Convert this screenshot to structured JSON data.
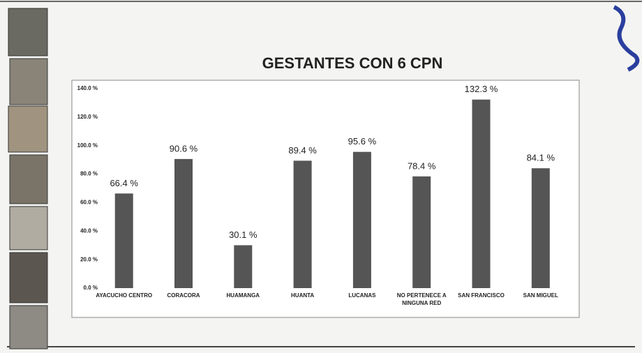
{
  "chart_data": {
    "type": "bar",
    "title": "GESTANTES CON 6 CPN",
    "categories": [
      "AYACUCHO CENTRO",
      "CORACORA",
      "HUAMANGA",
      "HUANTA",
      "LUCANAS",
      "NO PERTENECE A NINGUNA RED",
      "SAN FRANCISCO",
      "SAN MIGUEL"
    ],
    "values": [
      66.4,
      90.6,
      30.1,
      89.4,
      95.6,
      78.4,
      132.3,
      84.1
    ],
    "value_labels": [
      "66.4 %",
      "90.6 %",
      "30.1 %",
      "89.4 %",
      "95.6 %",
      "78.4 %",
      "132.3 %",
      "84.1 %"
    ],
    "color": "#555555",
    "ylim": [
      0,
      140
    ],
    "yticks": [
      {
        "value": 0,
        "label": "0.0 %"
      },
      {
        "value": 20,
        "label": "20.0 %"
      },
      {
        "value": 40,
        "label": "40.0 %"
      },
      {
        "value": 60,
        "label": "60.0 %"
      },
      {
        "value": 80,
        "label": "80.0 %"
      },
      {
        "value": 100,
        "label": "100.0 %"
      },
      {
        "value": 120,
        "label": "120.0 %"
      },
      {
        "value": 140,
        "label": "140.0 %"
      }
    ],
    "grid": false
  }
}
